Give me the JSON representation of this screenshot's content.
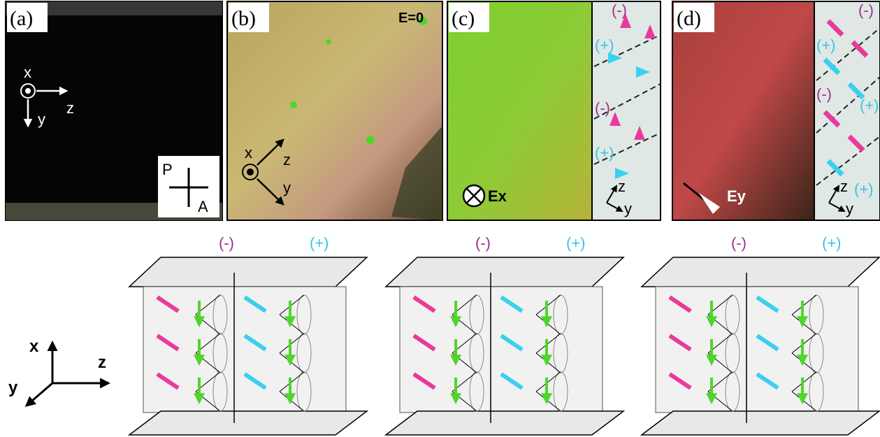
{
  "panels": [
    {
      "label": "(a)",
      "axes": [
        "x",
        "z",
        "y"
      ],
      "polarizers": [
        "P",
        "A"
      ]
    },
    {
      "label": "(b)",
      "field": "E=0",
      "axes": [
        "x",
        "z",
        "y"
      ]
    },
    {
      "label": "(c)",
      "field": "Ex",
      "inset_labels": [
        "(-)",
        "(+)",
        "(-)",
        "(+)"
      ],
      "inset_axes": [
        "z",
        "y"
      ]
    },
    {
      "label": "(d)",
      "field": "Ey",
      "inset_labels": [
        "(-)",
        "(+)",
        "(-)",
        "(+)",
        "(+)"
      ],
      "inset_axes": [
        "z",
        "y"
      ]
    }
  ],
  "diagrams": [
    {
      "labels": [
        "(-)",
        "(+)"
      ]
    },
    {
      "labels": [
        "(-)",
        "(+)"
      ]
    },
    {
      "labels": [
        "(-)",
        "(+)"
      ]
    }
  ],
  "axes": [
    "x",
    "z",
    "y"
  ]
}
